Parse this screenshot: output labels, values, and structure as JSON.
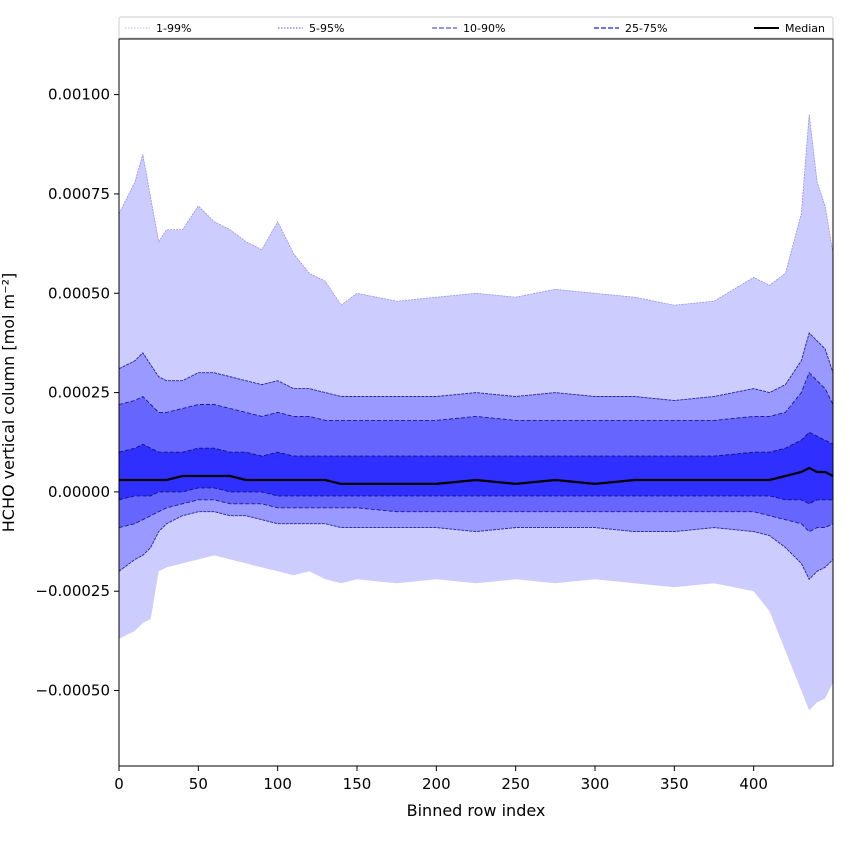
{
  "chart_data": {
    "type": "area",
    "xlabel": "Binned row index",
    "ylabel": "HCHO vertical column [mol m⁻²]",
    "xlim": [
      0,
      450
    ],
    "ylim": [
      -0.00069,
      0.00114
    ],
    "x_ticks": [
      0,
      50,
      100,
      150,
      200,
      250,
      300,
      350,
      400
    ],
    "x_tick_labels": [
      "0",
      "50",
      "100",
      "150",
      "200",
      "250",
      "300",
      "350",
      "400"
    ],
    "y_ticks": [
      -0.0005,
      -0.00025,
      0.0,
      0.00025,
      0.0005,
      0.00075,
      0.001
    ],
    "y_tick_labels": [
      "−0.00050",
      "−0.00025",
      "0.00000",
      "0.00025",
      "0.00050",
      "0.00075",
      "0.00100"
    ],
    "legend_placement": "top, spanning full width",
    "x": [
      0,
      10,
      15,
      20,
      25,
      30,
      40,
      50,
      60,
      70,
      80,
      90,
      100,
      110,
      120,
      130,
      140,
      150,
      175,
      200,
      225,
      250,
      275,
      300,
      325,
      350,
      375,
      400,
      410,
      420,
      430,
      435,
      440,
      445,
      450
    ],
    "series": [
      {
        "name": "1-99%",
        "band": "outer",
        "color": "#ccccff",
        "lower": [
          -0.00037,
          -0.00035,
          -0.00033,
          -0.00032,
          -0.0002,
          -0.00019,
          -0.00018,
          -0.00017,
          -0.00016,
          -0.00017,
          -0.00018,
          -0.00019,
          -0.0002,
          -0.00021,
          -0.0002,
          -0.00022,
          -0.00023,
          -0.00022,
          -0.00023,
          -0.00022,
          -0.00023,
          -0.00022,
          -0.00023,
          -0.00022,
          -0.00023,
          -0.00024,
          -0.00023,
          -0.00025,
          -0.0003,
          -0.0004,
          -0.0005,
          -0.00055,
          -0.00053,
          -0.00052,
          -0.00048
        ],
        "upper": [
          0.0007,
          0.00078,
          0.00085,
          0.00074,
          0.00063,
          0.00066,
          0.00066,
          0.00072,
          0.00068,
          0.00066,
          0.00063,
          0.00061,
          0.00068,
          0.0006,
          0.00055,
          0.00053,
          0.00047,
          0.0005,
          0.00048,
          0.00049,
          0.0005,
          0.00049,
          0.00051,
          0.0005,
          0.00049,
          0.00047,
          0.00048,
          0.00054,
          0.00052,
          0.00055,
          0.0007,
          0.00095,
          0.00078,
          0.00072,
          0.0006
        ]
      },
      {
        "name": "5-95%",
        "band": "second",
        "color": "#9999ff",
        "lower": [
          -0.0002,
          -0.00017,
          -0.00016,
          -0.00014,
          -0.0001,
          -8e-05,
          -6e-05,
          -5e-05,
          -5e-05,
          -6e-05,
          -6e-05,
          -7e-05,
          -8e-05,
          -8e-05,
          -8e-05,
          -8e-05,
          -9e-05,
          -9e-05,
          -9e-05,
          -9e-05,
          -0.0001,
          -9e-05,
          -9e-05,
          -9e-05,
          -0.0001,
          -0.0001,
          -9e-05,
          -0.0001,
          -0.00011,
          -0.00014,
          -0.00018,
          -0.00022,
          -0.0002,
          -0.00019,
          -0.00017
        ],
        "upper": [
          0.00031,
          0.00033,
          0.00035,
          0.00032,
          0.00029,
          0.00028,
          0.00028,
          0.0003,
          0.0003,
          0.00029,
          0.00028,
          0.00027,
          0.00028,
          0.00026,
          0.00026,
          0.00025,
          0.00024,
          0.00024,
          0.00024,
          0.00024,
          0.00025,
          0.00024,
          0.00025,
          0.00024,
          0.00024,
          0.00023,
          0.00024,
          0.00026,
          0.00025,
          0.00027,
          0.00033,
          0.0004,
          0.00038,
          0.00036,
          0.0003
        ]
      },
      {
        "name": "10-90%",
        "band": "third",
        "color": "#6666ff",
        "lower": [
          -9e-05,
          -8e-05,
          -7e-05,
          -6e-05,
          -5e-05,
          -4e-05,
          -3e-05,
          -2e-05,
          -2e-05,
          -3e-05,
          -3e-05,
          -3e-05,
          -4e-05,
          -4e-05,
          -4e-05,
          -4e-05,
          -4e-05,
          -4e-05,
          -5e-05,
          -5e-05,
          -5e-05,
          -5e-05,
          -5e-05,
          -5e-05,
          -5e-05,
          -5e-05,
          -5e-05,
          -5e-05,
          -6e-05,
          -7e-05,
          -8e-05,
          -0.0001,
          -9e-05,
          -9e-05,
          -8e-05
        ],
        "upper": [
          0.00022,
          0.00023,
          0.00024,
          0.00022,
          0.0002,
          0.0002,
          0.00021,
          0.00022,
          0.00022,
          0.00021,
          0.0002,
          0.00019,
          0.0002,
          0.00019,
          0.00019,
          0.00018,
          0.00018,
          0.00018,
          0.00018,
          0.00018,
          0.00019,
          0.00018,
          0.00018,
          0.00018,
          0.00018,
          0.00018,
          0.00018,
          0.00019,
          0.00019,
          0.0002,
          0.00025,
          0.0003,
          0.00028,
          0.00026,
          0.00022
        ]
      },
      {
        "name": "25-75%",
        "band": "inner",
        "color": "#2f2fff",
        "lower": [
          -2e-05,
          -1e-05,
          -1e-05,
          -1e-05,
          0.0,
          0.0,
          0.0,
          1e-05,
          1e-05,
          0.0,
          0.0,
          0.0,
          -1e-05,
          -1e-05,
          -1e-05,
          -1e-05,
          -1e-05,
          -1e-05,
          -1e-05,
          -1e-05,
          -1e-05,
          -1e-05,
          -1e-05,
          -1e-05,
          -1e-05,
          -1e-05,
          -1e-05,
          -1e-05,
          -1e-05,
          -2e-05,
          -2e-05,
          -3e-05,
          -2e-05,
          -2e-05,
          -2e-05
        ],
        "upper": [
          0.0001,
          0.00011,
          0.00012,
          0.00011,
          0.0001,
          0.0001,
          0.0001,
          0.00011,
          0.00011,
          0.0001,
          0.0001,
          9e-05,
          0.0001,
          9e-05,
          9e-05,
          9e-05,
          9e-05,
          9e-05,
          9e-05,
          9e-05,
          9e-05,
          9e-05,
          9e-05,
          9e-05,
          9e-05,
          9e-05,
          9e-05,
          0.0001,
          0.0001,
          0.00011,
          0.00013,
          0.00015,
          0.00014,
          0.00013,
          0.00012
        ]
      },
      {
        "name": "Median",
        "band": "line",
        "color": "#000000",
        "values": [
          3e-05,
          3e-05,
          3e-05,
          3e-05,
          3e-05,
          3e-05,
          4e-05,
          4e-05,
          4e-05,
          4e-05,
          3e-05,
          3e-05,
          3e-05,
          3e-05,
          3e-05,
          3e-05,
          2e-05,
          2e-05,
          2e-05,
          2e-05,
          3e-05,
          2e-05,
          3e-05,
          2e-05,
          3e-05,
          3e-05,
          3e-05,
          3e-05,
          3e-05,
          4e-05,
          5e-05,
          6e-05,
          5e-05,
          5e-05,
          4e-05
        ]
      }
    ],
    "legend": [
      {
        "label": "1-99%",
        "color": "#c8c8ff",
        "dash": "dotted"
      },
      {
        "label": "5-95%",
        "color": "#7777ee",
        "dash": "dotted"
      },
      {
        "label": "10-90%",
        "color": "#5555ee",
        "dash": "dashed"
      },
      {
        "label": "25-75%",
        "color": "#2222dd",
        "dash": "dashed"
      },
      {
        "label": "Median",
        "color": "#000000",
        "dash": "solid"
      }
    ]
  }
}
